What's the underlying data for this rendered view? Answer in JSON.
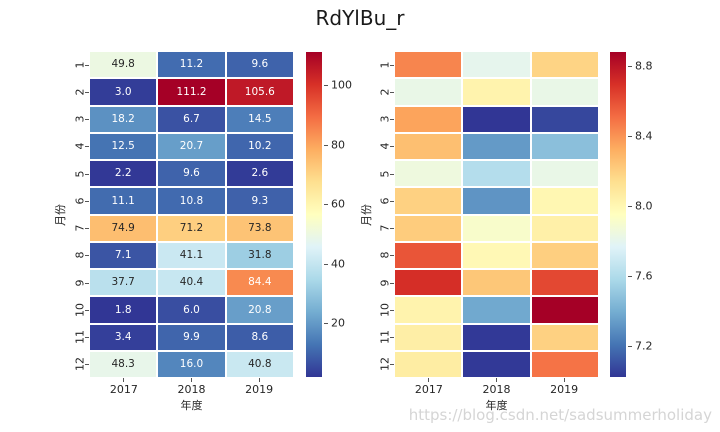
{
  "title": "RdYlBu_r",
  "watermark": "https://blog.csdn.net/sadsummerholiday",
  "colormap": {
    "name": "RdYlBu_r",
    "stops": [
      "#313695",
      "#4575b4",
      "#74add1",
      "#abd9e9",
      "#e0f3f8",
      "#ffffbf",
      "#fee090",
      "#fdae61",
      "#f46d43",
      "#d73027",
      "#a50026"
    ]
  },
  "colors": {
    "background": "#ffffff",
    "text": "#262626",
    "annot_dark": "#262626",
    "annot_light": "#ffffff",
    "watermark": "#d5d5d5"
  },
  "chart_data": [
    {
      "type": "heatmap",
      "position": "left",
      "xlabel": "年度",
      "ylabel": "月份",
      "x": [
        "2017",
        "2018",
        "2019"
      ],
      "y": [
        "1",
        "2",
        "3",
        "4",
        "5",
        "6",
        "7",
        "8",
        "9",
        "10",
        "11",
        "12"
      ],
      "values": [
        [
          49.8,
          11.2,
          9.6
        ],
        [
          3.0,
          111.2,
          105.6
        ],
        [
          18.2,
          6.7,
          14.5
        ],
        [
          12.5,
          20.7,
          10.2
        ],
        [
          2.2,
          9.6,
          2.6
        ],
        [
          11.1,
          10.8,
          9.3
        ],
        [
          74.9,
          71.2,
          73.8
        ],
        [
          7.1,
          41.1,
          31.8
        ],
        [
          37.7,
          40.4,
          84.4
        ],
        [
          1.8,
          6.0,
          20.8
        ],
        [
          3.4,
          9.9,
          8.6
        ],
        [
          48.3,
          16.0,
          40.8
        ]
      ],
      "annotated": true,
      "vmin": 1.8,
      "vmax": 111.2,
      "colorbar_ticks": [
        "20",
        "40",
        "60",
        "80",
        "100"
      ]
    },
    {
      "type": "heatmap",
      "position": "right",
      "xlabel": "年度",
      "ylabel": "月份",
      "x": [
        "2017",
        "2018",
        "2019"
      ],
      "y": [
        "1",
        "2",
        "3",
        "4",
        "5",
        "6",
        "7",
        "8",
        "9",
        "10",
        "11",
        "12"
      ],
      "values": [
        [
          8.44,
          7.8,
          8.18
        ],
        [
          7.82,
          8.02,
          7.82
        ],
        [
          8.35,
          7.02,
          7.07
        ],
        [
          8.26,
          7.33,
          7.47
        ],
        [
          7.85,
          7.61,
          7.82
        ],
        [
          8.19,
          7.31,
          8.0
        ],
        [
          8.21,
          7.91,
          8.04
        ],
        [
          8.58,
          7.99,
          8.2
        ],
        [
          8.7,
          8.23,
          8.62
        ],
        [
          8.02,
          7.38,
          8.88
        ],
        [
          8.05,
          7.03,
          8.19
        ],
        [
          8.06,
          7.03,
          8.49
        ]
      ],
      "annotated": false,
      "vmin": 7.02,
      "vmax": 8.88,
      "colorbar_ticks": [
        "7.2",
        "7.6",
        "8.0",
        "8.4",
        "8.8"
      ]
    }
  ]
}
